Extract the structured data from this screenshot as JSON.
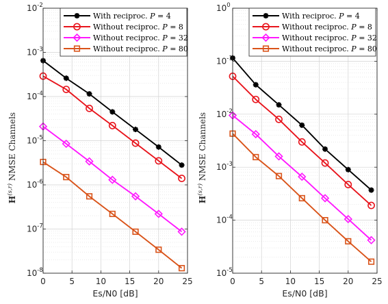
{
  "chart_data": [
    {
      "type": "line",
      "yscale": "log",
      "xlim": [
        0,
        25
      ],
      "ylim": [
        1e-08,
        0.01
      ],
      "xticks": [
        0,
        5,
        10,
        15,
        20,
        25
      ],
      "yticks": [
        {
          "base": "10",
          "exp": "-8",
          "v": 1e-08
        },
        {
          "base": "10",
          "exp": "-7",
          "v": 1e-07
        },
        {
          "base": "10",
          "exp": "-6",
          "v": 1e-06
        },
        {
          "base": "10",
          "exp": "-5",
          "v": 1e-05
        },
        {
          "base": "10",
          "exp": "-4",
          "v": 0.0001
        },
        {
          "base": "10",
          "exp": "-3",
          "v": 0.001
        },
        {
          "base": "10",
          "exp": "-2",
          "v": 0.01
        }
      ],
      "xlabel": "Es/N0 [dB]",
      "ylabel": {
        "H": "H",
        "sup": "(s,r)",
        "rest": " NMSE Channels"
      },
      "grid": true,
      "legend_position": "top-right",
      "x": [
        0,
        4,
        8,
        12,
        16,
        20,
        24
      ],
      "series": [
        {
          "name": "With reciproc. P = 4",
          "color": "#000000",
          "marker": "asterisk",
          "values": [
            0.00065,
            0.00026,
            0.000115,
            4.5e-05,
            1.8e-05,
            7.2e-06,
            2.8e-06
          ]
        },
        {
          "name": "Without reciproc. P = 8",
          "color": "#e8141c",
          "marker": "circle",
          "values": [
            0.00029,
            0.000145,
            5.4e-05,
            2.2e-05,
            8.8e-06,
            3.5e-06,
            1.4e-06
          ]
        },
        {
          "name": "Without reciproc. P = 32",
          "color": "#ff17ff",
          "marker": "diamond",
          "values": [
            2.1e-05,
            8.5e-06,
            3.4e-06,
            1.3e-06,
            5.5e-07,
            2.2e-07,
            8.7e-08
          ]
        },
        {
          "name": "Without reciproc. P = 80",
          "color": "#d95319",
          "marker": "square",
          "values": [
            3.3e-06,
            1.5e-06,
            5.5e-07,
            2.2e-07,
            8.7e-08,
            3.4e-08,
            1.3e-08
          ]
        }
      ]
    },
    {
      "type": "line",
      "yscale": "log",
      "xlim": [
        0,
        25
      ],
      "ylim": [
        1e-05,
        1
      ],
      "xticks": [
        0,
        5,
        10,
        15,
        20,
        25
      ],
      "yticks": [
        {
          "base": "10",
          "exp": "-5",
          "v": 1e-05
        },
        {
          "base": "10",
          "exp": "-4",
          "v": 0.0001
        },
        {
          "base": "10",
          "exp": "-3",
          "v": 0.001
        },
        {
          "base": "10",
          "exp": "-2",
          "v": 0.01
        },
        {
          "base": "10",
          "exp": "-1",
          "v": 0.1
        },
        {
          "base": "10",
          "exp": "0",
          "v": 1
        }
      ],
      "xlabel": "Es/N0 [dB]",
      "ylabel": {
        "H": "H",
        "sup": "(s,r)",
        "rest": " NMSE Channels"
      },
      "grid": true,
      "legend_position": "top-right",
      "x": [
        0,
        4,
        8,
        12,
        16,
        20,
        24
      ],
      "series": [
        {
          "name": "With reciproc. P = 4",
          "color": "#000000",
          "marker": "asterisk",
          "values": [
            0.115,
            0.036,
            0.015,
            0.0062,
            0.0022,
            0.0009,
            0.00037
          ]
        },
        {
          "name": "Without reciproc. P = 8",
          "color": "#e8141c",
          "marker": "circle",
          "values": [
            0.052,
            0.019,
            0.008,
            0.003,
            0.0012,
            0.00047,
            0.00019
          ]
        },
        {
          "name": "Without reciproc. P = 32",
          "color": "#ff17ff",
          "marker": "diamond",
          "values": [
            0.0095,
            0.0042,
            0.0016,
            0.00066,
            0.00026,
            0.000105,
            4.2e-05
          ]
        },
        {
          "name": "Without reciproc. P = 80",
          "color": "#d95319",
          "marker": "square",
          "values": [
            0.0043,
            0.00155,
            0.00068,
            0.00026,
            0.0001,
            4e-05,
            1.65e-05
          ]
        }
      ]
    }
  ],
  "legend": [
    {
      "pre": "With reciproc. ",
      "var": "P",
      "post": " = 4"
    },
    {
      "pre": "Without reciproc. ",
      "var": "P",
      "post": " = 8"
    },
    {
      "pre": "Without reciproc. ",
      "var": "P",
      "post": " = 32"
    },
    {
      "pre": "Without reciproc. ",
      "var": "P",
      "post": " = 80"
    }
  ]
}
